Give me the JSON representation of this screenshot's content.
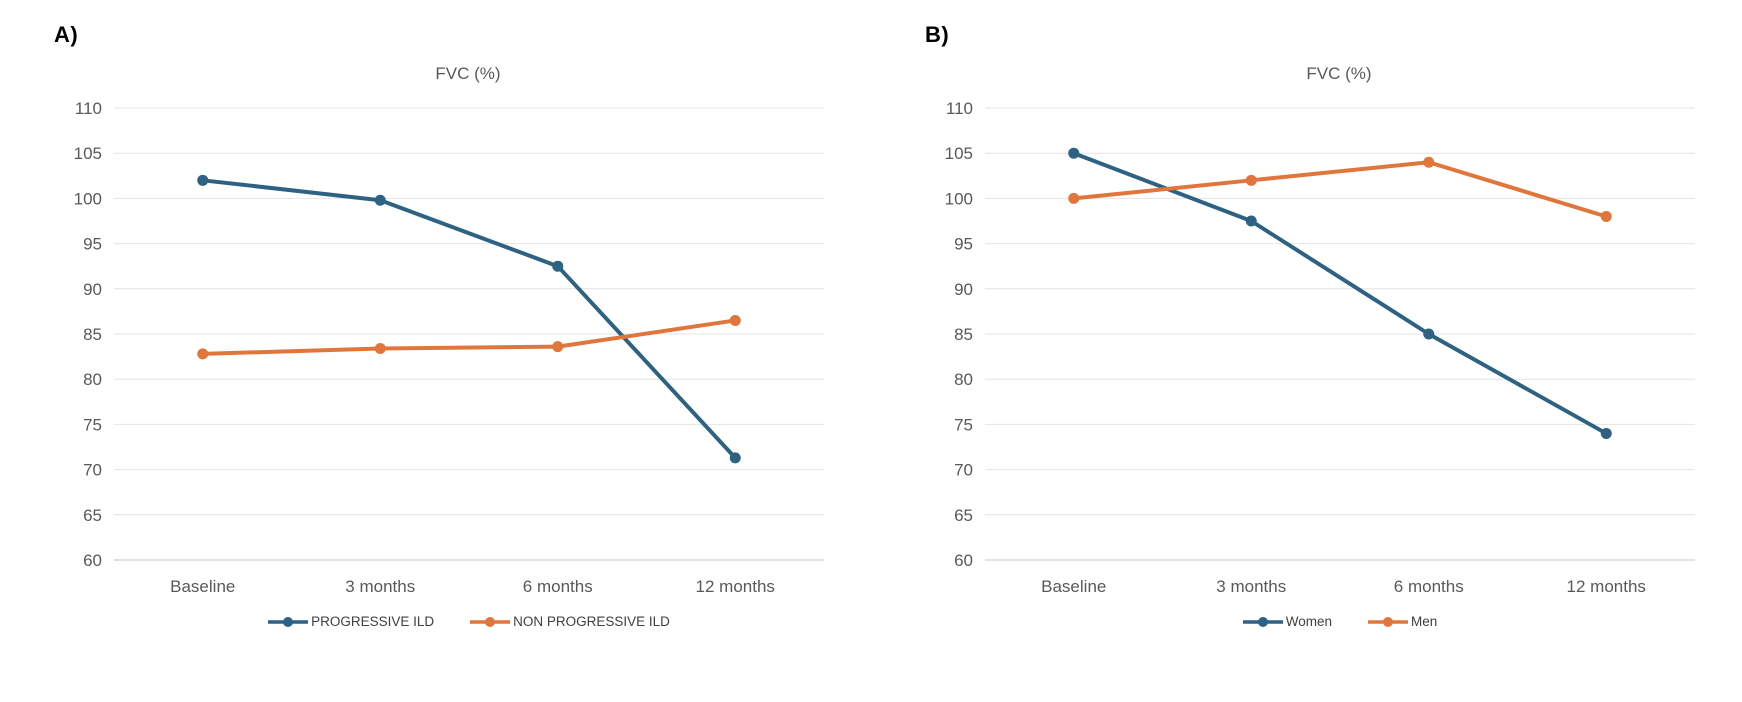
{
  "figure": {
    "background": "#ffffff",
    "panels": [
      {
        "label": "A)",
        "title": "FVC (%)"
      },
      {
        "label": "B)",
        "title": "FVC (%)"
      }
    ]
  },
  "styles": {
    "series_blue": "#2E6282",
    "series_orange": "#E0763C",
    "gridline_color": "#E4E4E4",
    "baseline_gridline_color": "#D9D9D9",
    "axis_text_color": "#595959",
    "legend_text_color": "#404040"
  },
  "chart_data": [
    {
      "type": "line",
      "panel": "A",
      "title": "FVC (%)",
      "categories": [
        "Baseline",
        "3 months",
        "6 months",
        "12 months"
      ],
      "series": [
        {
          "name": "PROGRESSIVE ILD",
          "color": "#2E6282",
          "values": [
            102,
            99.8,
            92.5,
            71.3
          ]
        },
        {
          "name": "NON PROGRESSIVE ILD",
          "color": "#E0763C",
          "values": [
            82.8,
            83.4,
            83.6,
            86.5
          ]
        }
      ],
      "xlabel": "",
      "ylabel": "",
      "ylim": [
        60,
        110
      ],
      "ytick_step": 5,
      "grid": true,
      "markers": true,
      "legend_position": "bottom"
    },
    {
      "type": "line",
      "panel": "B",
      "title": "FVC (%)",
      "categories": [
        "Baseline",
        "3 months",
        "6 months",
        "12 months"
      ],
      "series": [
        {
          "name": "Women",
          "color": "#2E6282",
          "values": [
            105,
            97.5,
            85,
            74
          ]
        },
        {
          "name": "Men",
          "color": "#E0763C",
          "values": [
            100,
            102,
            104,
            98
          ]
        }
      ],
      "xlabel": "",
      "ylabel": "",
      "ylim": [
        60,
        110
      ],
      "ytick_step": 5,
      "grid": true,
      "markers": true,
      "legend_position": "bottom"
    }
  ]
}
